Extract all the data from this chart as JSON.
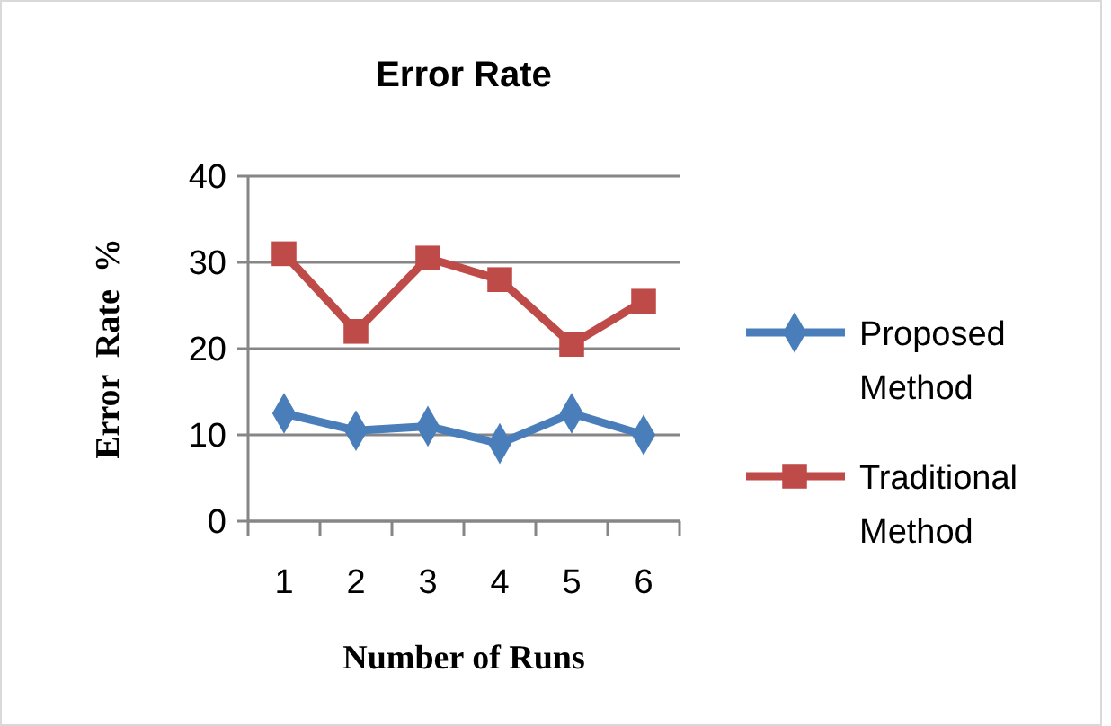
{
  "chart_data": {
    "type": "line",
    "title": "Error Rate",
    "xlabel": "Number of Runs",
    "ylabel": "Error  Rate  %",
    "categories": [
      "1",
      "2",
      "3",
      "4",
      "5",
      "6"
    ],
    "ylim": [
      0,
      40
    ],
    "yticks": [
      0,
      10,
      20,
      30,
      40
    ],
    "grid": "y",
    "legend": "right",
    "series": [
      {
        "name": "Proposed Method",
        "color": "#4a7ebb",
        "marker": "diamond",
        "values": [
          12.5,
          10.5,
          11,
          9,
          12.5,
          10
        ]
      },
      {
        "name": "Traditional Method",
        "color": "#be4b48",
        "marker": "square",
        "values": [
          31,
          22,
          30.5,
          28,
          20.5,
          25.5
        ]
      }
    ]
  }
}
